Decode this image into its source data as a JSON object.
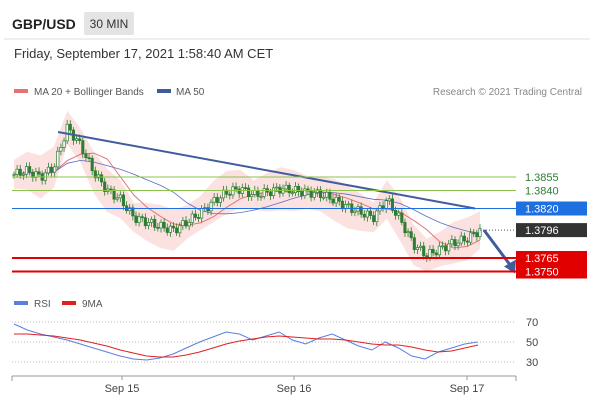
{
  "header": {
    "pair": "GBP/USD",
    "timeframe": "30 MIN",
    "datetime": "Friday, September 17, 2021 1:58:40 AM CET"
  },
  "legend": {
    "ma20": "MA 20 + Bollinger Bands",
    "ma50": "MA 50",
    "credit": "Research © 2021 Trading Central",
    "rsi": "RSI",
    "ma9": "9MA"
  },
  "colors": {
    "candle": "#2e7d32",
    "ma20": "#e57373",
    "bollinger": "#fbdada",
    "ma50": "#5c6bc0",
    "trendline": "#3f5c9e",
    "green_level": "#8bc34a",
    "pivot_blue": "#1e6fe0",
    "support_red": "#e00000",
    "last_dark": "#333333",
    "rsi": "#5b7fe0",
    "ma9": "#e02020"
  },
  "chart_data": [
    {
      "type": "candlestick",
      "title": "GBP/USD 30 MIN",
      "x_labels": [
        "Sep 15",
        "Sep 16",
        "Sep 17"
      ],
      "levels": [
        {
          "value": 1.3855,
          "label": "1.3855",
          "style": "green"
        },
        {
          "value": 1.384,
          "label": "1.3840",
          "style": "green"
        },
        {
          "value": 1.382,
          "label": "1.3820",
          "style": "blue"
        },
        {
          "value": 1.3796,
          "label": "1.3796",
          "style": "last"
        },
        {
          "value": 1.3765,
          "label": "1.3765",
          "style": "red"
        },
        {
          "value": 1.375,
          "label": "1.3750",
          "style": "red"
        }
      ],
      "close_path": [
        1.3858,
        1.3862,
        1.3855,
        1.3866,
        1.391,
        1.389,
        1.386,
        1.384,
        1.383,
        1.381,
        1.3805,
        1.38,
        1.3796,
        1.3805,
        1.3815,
        1.3828,
        1.3838,
        1.3842,
        1.3835,
        1.3838,
        1.3842,
        1.384,
        1.3838,
        1.3836,
        1.383,
        1.3822,
        1.3816,
        1.381,
        1.383,
        1.3808,
        1.378,
        1.3768,
        1.3775,
        1.3782,
        1.3786,
        1.3796
      ],
      "trendline": {
        "from": 1.3905,
        "to": 1.382
      },
      "ylim": [
        1.3735,
        1.3935
      ]
    },
    {
      "type": "line",
      "title": "RSI",
      "ticks": [
        "70",
        "50",
        "30"
      ],
      "tick_values": [
        70,
        50,
        30
      ],
      "ylim": [
        20,
        80
      ],
      "series": [
        {
          "name": "RSI",
          "values": [
            68,
            62,
            58,
            55,
            52,
            48,
            44,
            40,
            36,
            33,
            32,
            34,
            38,
            44,
            50,
            55,
            60,
            58,
            52,
            56,
            60,
            52,
            48,
            54,
            58,
            52,
            46,
            42,
            50,
            44,
            36,
            33,
            40,
            44,
            48,
            50
          ]
        },
        {
          "name": "9MA",
          "values": [
            58,
            58,
            57,
            56,
            54,
            52,
            49,
            46,
            42,
            39,
            36,
            35,
            35,
            37,
            40,
            44,
            48,
            51,
            53,
            55,
            56,
            55,
            54,
            53,
            53,
            52,
            50,
            48,
            47,
            47,
            45,
            42,
            40,
            41,
            44,
            47
          ]
        }
      ]
    }
  ]
}
